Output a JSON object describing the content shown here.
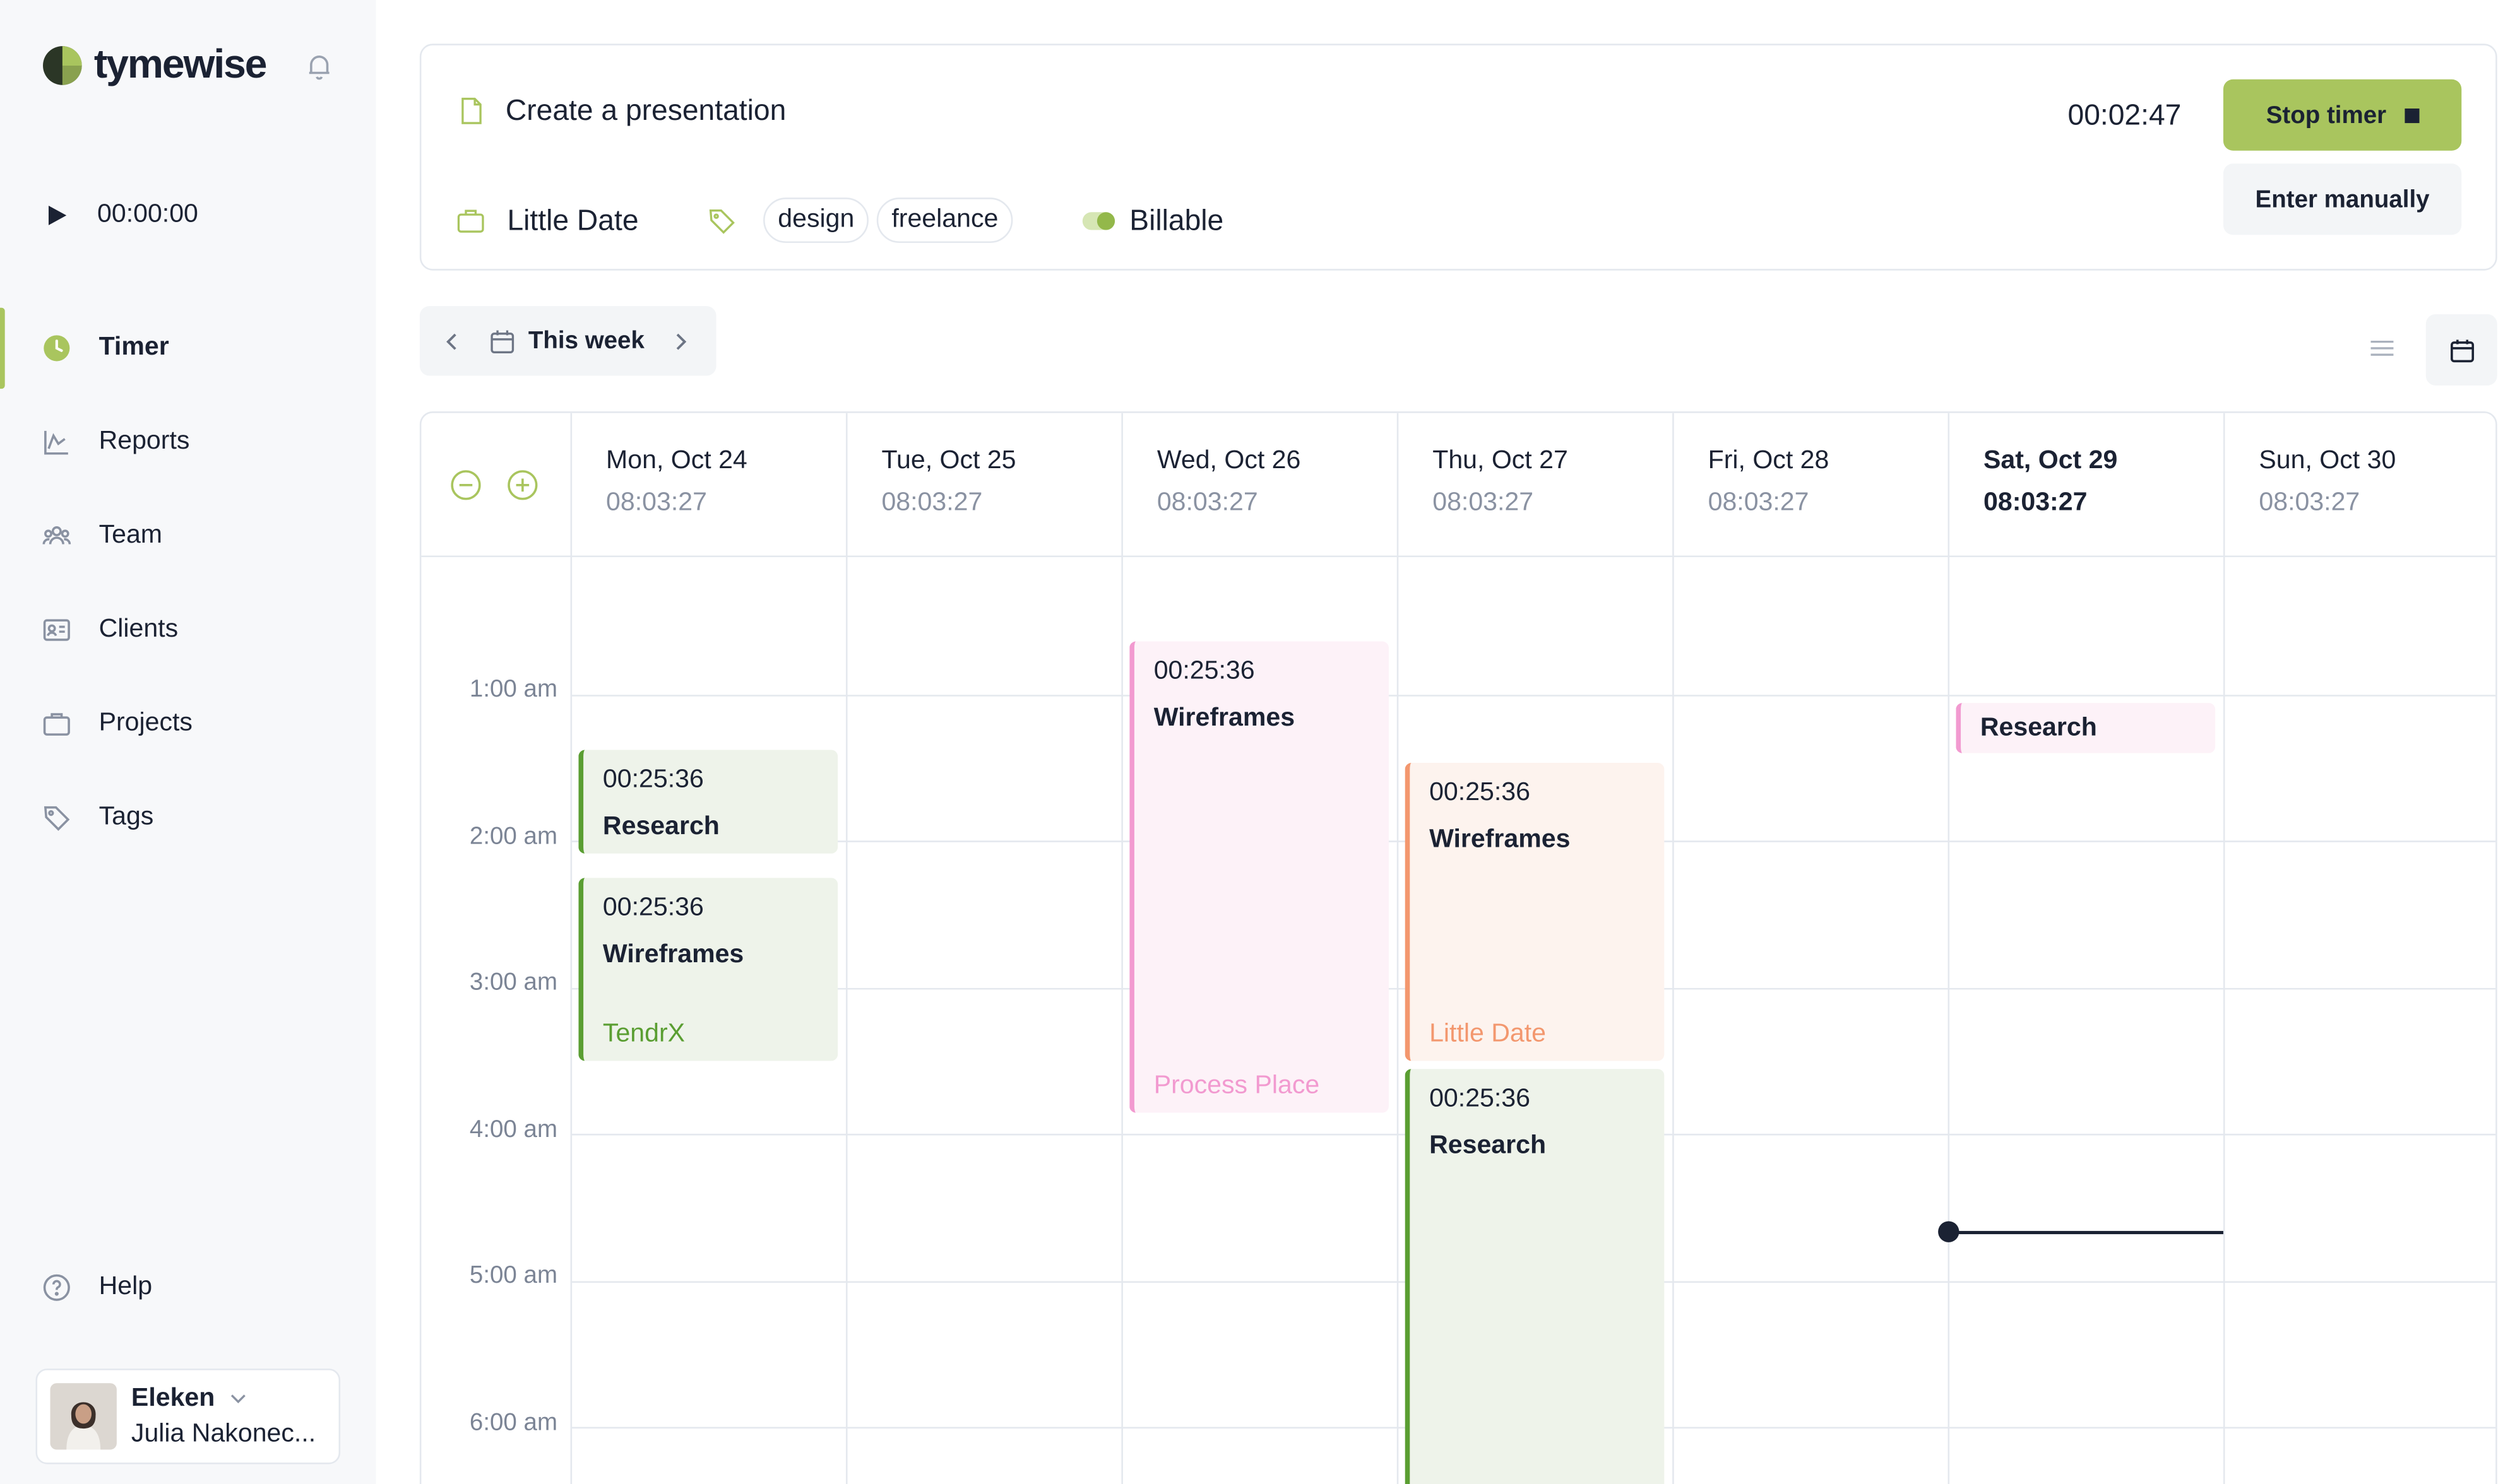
{
  "brand": {
    "name": "tymewise",
    "accent": "#a9c55e"
  },
  "quick_timer": {
    "time": "00:00:00"
  },
  "nav": {
    "items": [
      {
        "label": "Timer",
        "icon": "clock-icon",
        "active": true
      },
      {
        "label": "Reports",
        "icon": "chart-icon"
      },
      {
        "label": "Team",
        "icon": "team-icon"
      },
      {
        "label": "Clients",
        "icon": "id-card-icon"
      },
      {
        "label": "Projects",
        "icon": "briefcase-icon"
      },
      {
        "label": "Tags",
        "icon": "tag-icon"
      }
    ],
    "help": "Help"
  },
  "user": {
    "org": "Eleken",
    "name": "Julia Nakonec..."
  },
  "timer": {
    "task": "Create a presentation",
    "project": "Little Date",
    "tags": [
      "design",
      "freelance"
    ],
    "billable_label": "Billable",
    "billable_on": true,
    "elapsed": "00:02:47",
    "stop_label": "Stop timer",
    "manual_label": "Enter manually"
  },
  "week": {
    "label": "This week"
  },
  "calendar": {
    "days": [
      {
        "date": "Mon, Oct 24",
        "total": "08:03:27"
      },
      {
        "date": "Tue, Oct 25",
        "total": "08:03:27"
      },
      {
        "date": "Wed, Oct 26",
        "total": "08:03:27"
      },
      {
        "date": "Thu, Oct 27",
        "total": "08:03:27"
      },
      {
        "date": "Fri, Oct 28",
        "total": "08:03:27"
      },
      {
        "date": "Sat, Oct 29",
        "total": "08:03:27",
        "today": true
      },
      {
        "date": "Sun, Oct 30",
        "total": "08:03:27"
      }
    ],
    "hours": [
      "1:00 am",
      "2:00 am",
      "3:00 am",
      "4:00 am",
      "5:00 am",
      "6:00 am"
    ],
    "events": [
      {
        "duration": "00:25:36",
        "title": "Research",
        "client": ""
      },
      {
        "duration": "00:25:36",
        "title": "Wireframes",
        "client": "TendrX"
      },
      {
        "duration": "00:25:36",
        "title": "Wireframes",
        "client": "Process Place"
      },
      {
        "duration": "00:25:36",
        "title": "Wireframes",
        "client": "Little Date"
      },
      {
        "duration": "00:25:36",
        "title": "Research",
        "client": ""
      },
      {
        "duration": "",
        "title": "Research",
        "client": ""
      }
    ],
    "colors": {
      "green": "#5a9e32",
      "pink": "#f29ad0",
      "orange": "#f3976e"
    }
  }
}
